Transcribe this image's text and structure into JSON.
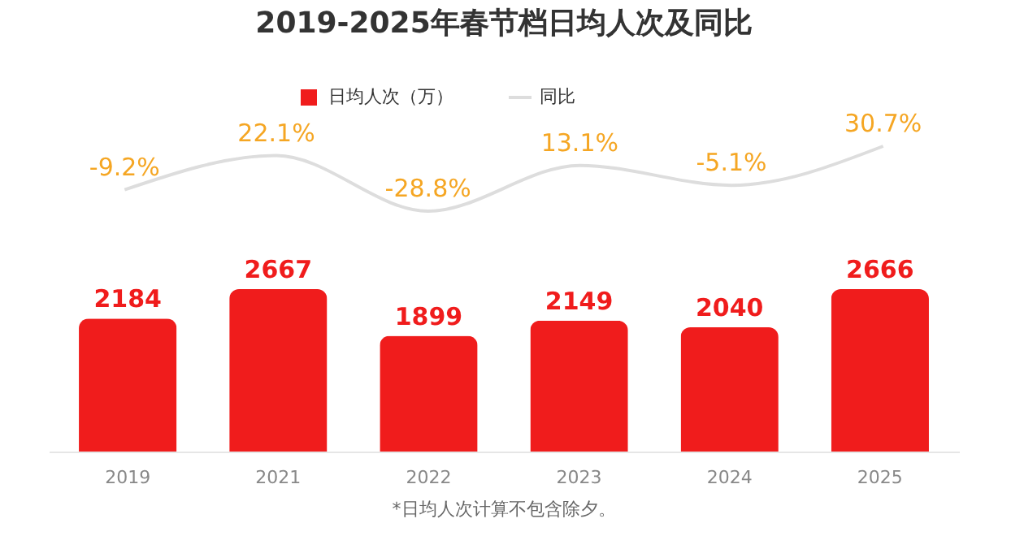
{
  "chart_data": [
    {
      "type": "line",
      "title": "2019-2025年春节档日均人次及同比",
      "legend": "top",
      "tick_labels": false,
      "categories": [
        "2019",
        "2021",
        "2022",
        "2023",
        "2024",
        "2025"
      ],
      "series": [
        {
          "name": "同比",
          "color": "#dddddd",
          "values": [
            -9.2,
            22.1,
            -28.8,
            13.1,
            -5.1,
            30.7
          ],
          "value_labels": [
            "-9.2%",
            "22.1%",
            "-28.8%",
            "13.1%",
            "-5.1%",
            "30.7%"
          ]
        }
      ]
    },
    {
      "type": "bar",
      "legend": "top",
      "tick_labels": "x",
      "data_labels": true,
      "categories": [
        "2019",
        "2021",
        "2022",
        "2023",
        "2024",
        "2025"
      ],
      "series": [
        {
          "name": "日均人次（万）",
          "color": "#f01c1c",
          "values": [
            2184,
            2667,
            1899,
            2149,
            2040,
            2666
          ]
        }
      ],
      "annotations": [
        "*日均人次计算不包含除夕。"
      ]
    }
  ]
}
